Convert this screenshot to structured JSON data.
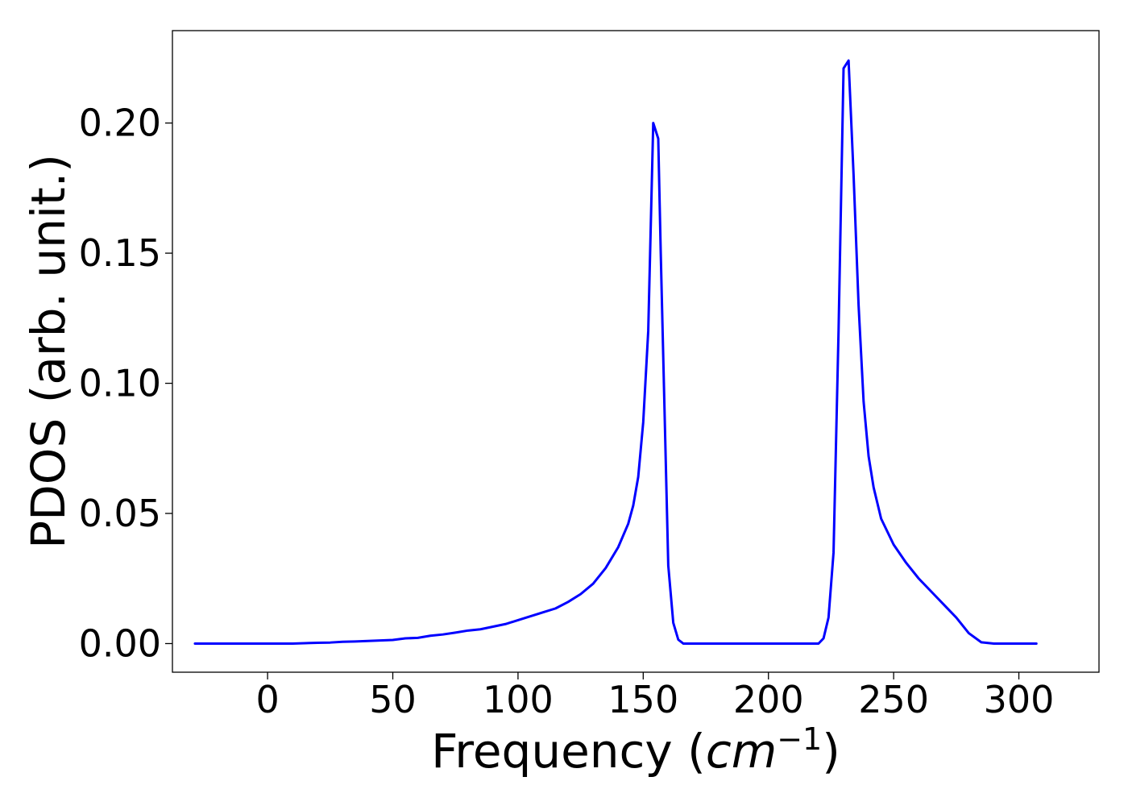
{
  "chart_data": {
    "type": "line",
    "title": "",
    "xlabel": "Frequency (",
    "xlabel_math": "cm",
    "xlabel_sup": "−1",
    "xlabel_close": ")",
    "ylabel": "PDOS (arb. unit.)",
    "xlim": [
      -38,
      332
    ],
    "ylim": [
      -0.011,
      0.2355
    ],
    "xticks": [
      0,
      50,
      100,
      150,
      200,
      250,
      300
    ],
    "xtick_labels": [
      "0",
      "50",
      "100",
      "150",
      "200",
      "250",
      "300"
    ],
    "yticks": [
      0.0,
      0.05,
      0.1,
      0.15,
      0.2
    ],
    "ytick_labels": [
      "0.00",
      "0.05",
      "0.10",
      "0.15",
      "0.20"
    ],
    "grid": false,
    "legend": false,
    "series": [
      {
        "color": "#0000ff",
        "x": [
          -29,
          0,
          10,
          20,
          25,
          30,
          35,
          40,
          45,
          50,
          55,
          60,
          65,
          70,
          75,
          80,
          85,
          90,
          95,
          100,
          105,
          110,
          115,
          120,
          125,
          130,
          135,
          140,
          144,
          146,
          148,
          150,
          152,
          154,
          156,
          157,
          158,
          160,
          162,
          164,
          166,
          170,
          180,
          200,
          215,
          220,
          222,
          224,
          226,
          228,
          230,
          232,
          234,
          236,
          238,
          240,
          242,
          245,
          250,
          255,
          260,
          265,
          270,
          275,
          280,
          285,
          290,
          300,
          307
        ],
        "y": [
          0.0,
          0.0,
          0.0,
          0.0003,
          0.0004,
          0.0007,
          0.0008,
          0.001,
          0.0012,
          0.0014,
          0.002,
          0.0022,
          0.003,
          0.0035,
          0.0042,
          0.005,
          0.0055,
          0.0065,
          0.0075,
          0.009,
          0.0105,
          0.012,
          0.0135,
          0.016,
          0.019,
          0.023,
          0.029,
          0.037,
          0.046,
          0.053,
          0.064,
          0.085,
          0.12,
          0.2,
          0.194,
          0.15,
          0.11,
          0.03,
          0.008,
          0.0015,
          0.0,
          0.0,
          0.0,
          0.0,
          0.0,
          0.0,
          0.002,
          0.01,
          0.035,
          0.12,
          0.221,
          0.224,
          0.18,
          0.13,
          0.093,
          0.072,
          0.06,
          0.048,
          0.038,
          0.031,
          0.025,
          0.02,
          0.015,
          0.01,
          0.004,
          0.0005,
          0.0,
          0.0,
          0.0
        ]
      }
    ]
  }
}
